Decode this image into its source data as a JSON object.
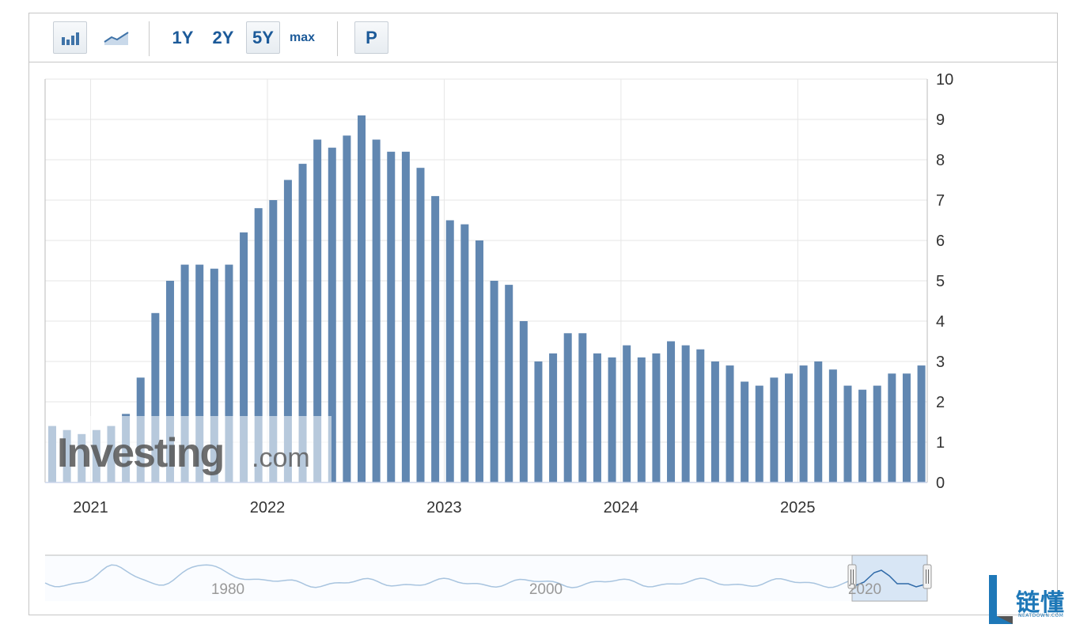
{
  "toolbar": {
    "bar_icon": "bar-chart-icon",
    "line_icon": "line-chart-icon",
    "range_1y": "1Y",
    "range_2y": "2Y",
    "range_5y": "5Y",
    "range_max": "max",
    "selected_range": "5Y",
    "p_label": "P"
  },
  "watermark": {
    "brand": "Investing",
    "suffix": ".com"
  },
  "colors": {
    "bar": "#6187b1",
    "navigator_line": "#a8c4df",
    "navigator_selection": "#cfe0f3",
    "grid": "#e6e6e6"
  },
  "chart_data": {
    "type": "bar",
    "title": "",
    "xlabel": "",
    "ylabel": "",
    "ylim": [
      0,
      10
    ],
    "y_ticks": [
      0,
      1,
      2,
      3,
      4,
      5,
      6,
      7,
      8,
      9,
      10
    ],
    "x_year_labels": [
      "2021",
      "2022",
      "2023",
      "2024",
      "2025"
    ],
    "grid": true,
    "y_axis_position": "right",
    "categories": [
      "2020-10",
      "2020-11",
      "2020-12",
      "2021-01",
      "2021-02",
      "2021-03",
      "2021-04",
      "2021-05",
      "2021-06",
      "2021-07",
      "2021-08",
      "2021-09",
      "2021-10",
      "2021-11",
      "2021-12",
      "2022-01",
      "2022-02",
      "2022-03",
      "2022-04",
      "2022-05",
      "2022-06",
      "2022-07",
      "2022-08",
      "2022-09",
      "2022-10",
      "2022-11",
      "2022-12",
      "2023-01",
      "2023-02",
      "2023-03",
      "2023-04",
      "2023-05",
      "2023-06",
      "2023-07",
      "2023-08",
      "2023-09",
      "2023-10",
      "2023-11",
      "2023-12",
      "2024-01",
      "2024-02",
      "2024-03",
      "2024-04",
      "2024-05",
      "2024-06",
      "2024-07",
      "2024-08",
      "2024-09",
      "2024-10",
      "2024-11",
      "2024-12",
      "2025-01",
      "2025-02",
      "2025-03",
      "2025-04",
      "2025-05",
      "2025-06",
      "2025-07",
      "2025-08",
      "2025-09"
    ],
    "values": [
      1.4,
      1.3,
      1.2,
      1.3,
      1.4,
      1.7,
      2.6,
      4.2,
      5.0,
      5.4,
      5.4,
      5.3,
      5.4,
      6.2,
      6.8,
      7.0,
      7.5,
      7.9,
      8.5,
      8.3,
      8.6,
      9.1,
      8.5,
      8.2,
      8.2,
      7.8,
      7.1,
      6.5,
      6.4,
      6.0,
      5.0,
      4.9,
      4.0,
      3.0,
      3.2,
      3.7,
      3.7,
      3.2,
      3.1,
      3.4,
      3.1,
      3.2,
      3.5,
      3.4,
      3.3,
      3.0,
      2.9,
      2.5,
      2.4,
      2.6,
      2.7,
      2.9,
      3.0,
      2.8,
      2.4,
      2.3,
      2.4,
      2.7,
      2.7,
      2.9
    ],
    "navigator": {
      "labels": [
        "1980",
        "2000",
        "2020"
      ],
      "selected_range": [
        "2020-10",
        "2025-09"
      ]
    }
  }
}
